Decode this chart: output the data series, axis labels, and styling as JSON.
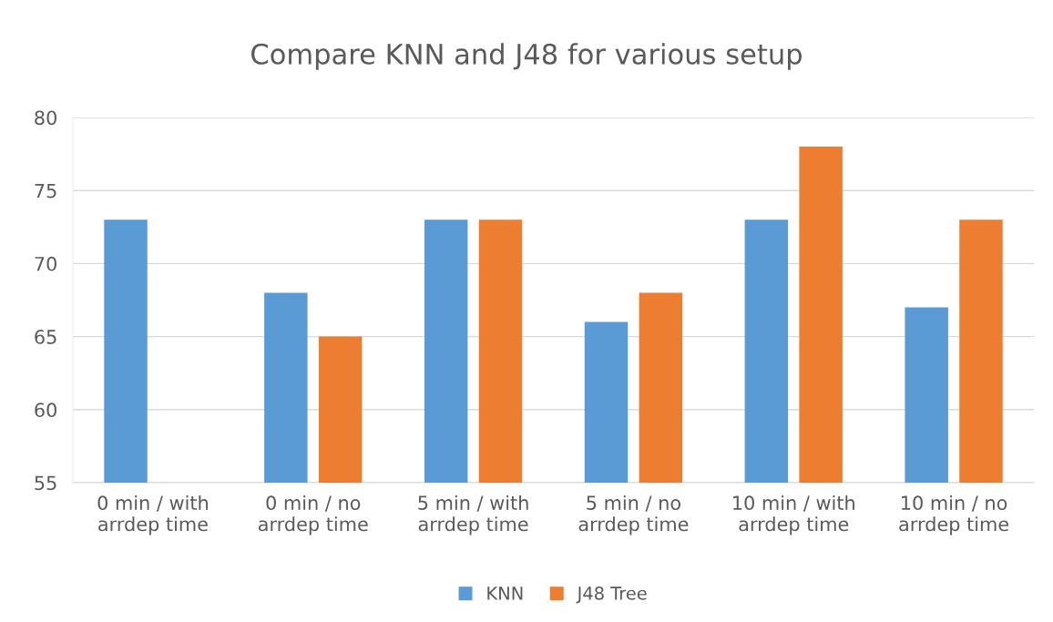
{
  "chart_data": {
    "type": "bar",
    "title": "Compare KNN and J48 for various setup",
    "categories": [
      "0 min / with\narrdep time",
      "0 min / no\narrdep time",
      "5 min / with\narrdep time",
      "5 min / no\narrdep time",
      "10 min / with\narrdep time",
      "10 min / no\narrdep time"
    ],
    "series": [
      {
        "name": "KNN",
        "color": "#5b9bd5",
        "values": [
          73,
          68,
          73,
          66,
          73,
          67
        ]
      },
      {
        "name": "J48 Tree",
        "color": "#ed7d31",
        "values": [
          null,
          65,
          73,
          68,
          78,
          73
        ]
      }
    ],
    "ylim": [
      55,
      80
    ],
    "yticks": [
      55,
      60,
      65,
      70,
      75,
      80
    ],
    "grid": "y",
    "legend": "bottom"
  }
}
